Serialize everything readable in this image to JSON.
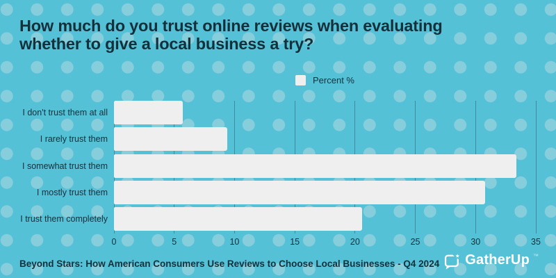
{
  "theme": {
    "background_color": "#55C1D7",
    "dot_color": "#87CEDC",
    "ink_color": "#14303A",
    "bar_color": "#EFEFEF",
    "gridline_color": "#3E8BA0",
    "logo_color": "#FFFFFF"
  },
  "title": "How much do you trust online reviews when evaluating whether to give a local business a try?",
  "legend": {
    "label": "Percent %"
  },
  "chart_data": {
    "type": "bar",
    "orientation": "horizontal",
    "title": "How much do you trust online reviews when evaluating whether to give a local business a try?",
    "series_name": "Percent %",
    "categories": [
      "I don't trust them at all",
      "I rarely trust them",
      "I somewhat trust them",
      "I mostly trust them",
      "I trust them completely"
    ],
    "values": [
      5.7,
      9.4,
      33.4,
      30.8,
      20.6
    ],
    "xlim": [
      0,
      35
    ],
    "x_ticks": [
      0,
      5,
      10,
      15,
      20,
      25,
      30,
      35
    ],
    "grid": true,
    "legend_position": "top-center",
    "bar_color": "#EFEFEF"
  },
  "footer": {
    "source": "Beyond Stars: How American Consumers Use Reviews to Choose Local Businesses - Q4 2024",
    "brand": "GatherUp",
    "brand_mark": "™"
  }
}
